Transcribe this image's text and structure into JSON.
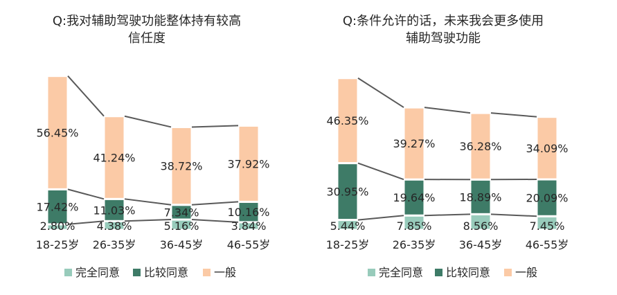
{
  "legend": [
    {
      "label": "完全同意",
      "color": "#98cbbb"
    },
    {
      "label": "比较同意",
      "color": "#3e7b67"
    },
    {
      "label": "一般",
      "color": "#fbcaa6"
    }
  ],
  "chart_data": [
    {
      "type": "bar",
      "stacked": true,
      "title_lines": [
        "Q:我对辅助驾驶功能整体持有较高",
        "信任度"
      ],
      "categories": [
        "18-25岁",
        "26-35岁",
        "36-45岁",
        "46-55岁"
      ],
      "series": [
        {
          "name": "完全同意",
          "color": "#98cbbb",
          "values": [
            2.8,
            4.38,
            5.16,
            3.84
          ],
          "labels": [
            "2.80%",
            "4.38%",
            "5.16%",
            "3.84%"
          ]
        },
        {
          "name": "比较同意",
          "color": "#3e7b67",
          "values": [
            17.42,
            11.03,
            7.34,
            10.16
          ],
          "labels": [
            "17.42%",
            "11.03%",
            "7.34%",
            "10.16%"
          ]
        },
        {
          "name": "一般",
          "color": "#fbcaa6",
          "values": [
            56.45,
            41.24,
            38.72,
            37.92
          ],
          "labels": [
            "56.45%",
            "41.24%",
            "38.72%",
            "37.92%"
          ]
        }
      ],
      "series_lines": true,
      "grid": false
    },
    {
      "type": "bar",
      "stacked": true,
      "title_lines": [
        "Q:条件允许的话，未来我会更多使用",
        "辅助驾驶功能"
      ],
      "categories": [
        "18-25岁",
        "26-35岁",
        "36-45岁",
        "46-55岁"
      ],
      "series": [
        {
          "name": "完全同意",
          "color": "#98cbbb",
          "values": [
            5.44,
            7.85,
            8.56,
            7.45
          ],
          "labels": [
            "5.44%",
            "7.85%",
            "8.56%",
            "7.45%"
          ]
        },
        {
          "name": "比较同意",
          "color": "#3e7b67",
          "values": [
            30.95,
            19.64,
            18.89,
            20.09
          ],
          "labels": [
            "30.95%",
            "19.64%",
            "18.89%",
            "20.09%"
          ]
        },
        {
          "name": "一般",
          "color": "#fbcaa6",
          "values": [
            46.35,
            39.27,
            36.28,
            34.09
          ],
          "labels": [
            "46.35%",
            "39.27%",
            "36.28%",
            "34.09%"
          ]
        }
      ],
      "series_lines": true,
      "grid": false
    }
  ]
}
